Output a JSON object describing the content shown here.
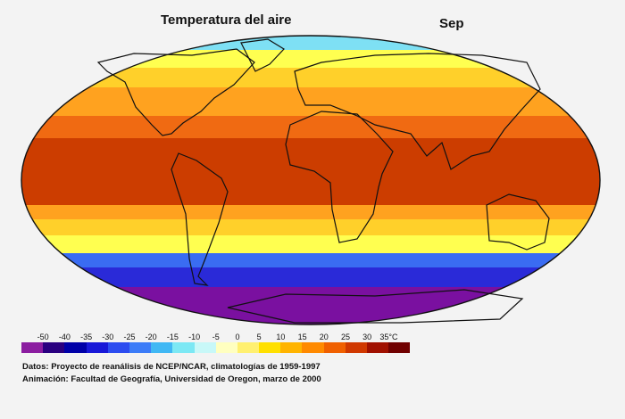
{
  "map": {
    "title": "Temperatura del aire",
    "month": "Sep",
    "bands": [
      {
        "color": "#7a10a0"
      },
      {
        "color": "#2a2ad8"
      },
      {
        "color": "#3a6cf2"
      },
      {
        "color": "#7ee0f4"
      },
      {
        "color": "#ffff50"
      },
      {
        "color": "#ffd02a"
      },
      {
        "color": "#ffa21f"
      },
      {
        "color": "#f06a12"
      },
      {
        "color": "#cc3d00"
      }
    ]
  },
  "legend": {
    "labels": [
      "-50",
      "-40",
      "-35",
      "-30",
      "-25",
      "-20",
      "-15",
      "-10",
      "-5",
      "0",
      "5",
      "10",
      "15",
      "20",
      "25",
      "30",
      "35°C"
    ],
    "colors": [
      "#8b1da0",
      "#2a0080",
      "#0000a8",
      "#1818d8",
      "#2c4cf0",
      "#3c7cf8",
      "#40b8f4",
      "#7ce8f4",
      "#c8f8f8",
      "#ffffc0",
      "#fff070",
      "#ffe000",
      "#ffb400",
      "#ff8a00",
      "#f06000",
      "#d03800",
      "#a01000",
      "#700000"
    ]
  },
  "credits": {
    "line1": "Datos: Proyecto de reanálisis de NCEP/NCAR, climatologías de 1959-1997",
    "line2": "Animación: Facultad de Geografía, Universidad de Oregon, marzo de 2000"
  }
}
